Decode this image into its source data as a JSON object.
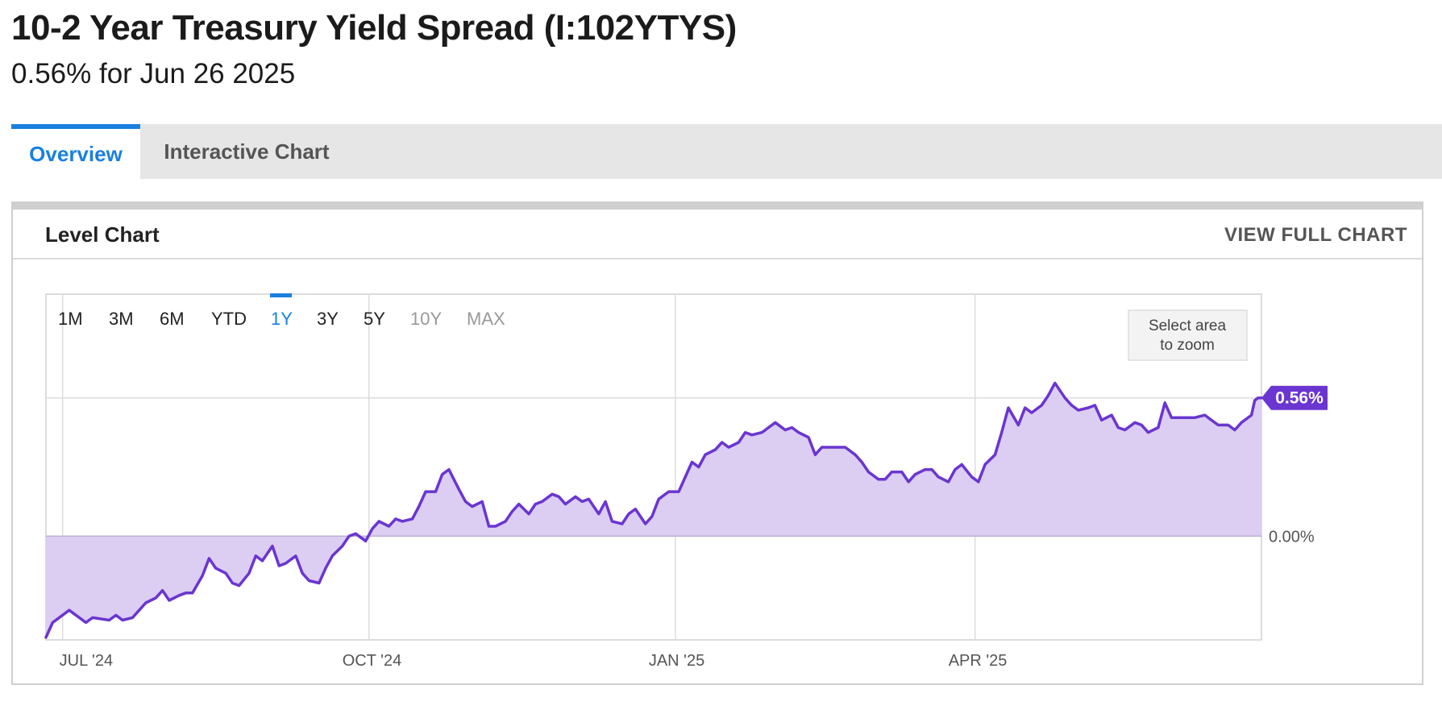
{
  "header": {
    "title": "10-2 Year Treasury Yield Spread (I:102YTYS)",
    "subtitle": "0.56% for Jun 26 2025"
  },
  "tabs": [
    {
      "label": "Overview",
      "active": true
    },
    {
      "label": "Interactive Chart",
      "active": false
    }
  ],
  "panel": {
    "title": "Level Chart",
    "link": "VIEW FULL CHART"
  },
  "range_buttons": [
    {
      "label": "1M",
      "state": "enabled"
    },
    {
      "label": "3M",
      "state": "enabled"
    },
    {
      "label": "6M",
      "state": "enabled"
    },
    {
      "label": "YTD",
      "state": "enabled"
    },
    {
      "label": "1Y",
      "state": "active"
    },
    {
      "label": "3Y",
      "state": "enabled"
    },
    {
      "label": "5Y",
      "state": "enabled"
    },
    {
      "label": "10Y",
      "state": "disabled"
    },
    {
      "label": "MAX",
      "state": "disabled"
    }
  ],
  "zoom_hint": [
    "Select area",
    "to zoom"
  ],
  "colors": {
    "series": "#6a35d0",
    "fill": "#dccdf3",
    "accent": "#1a80e0",
    "grid": "#dcdcdc",
    "disabled": "#999999"
  },
  "chart_data": {
    "type": "area",
    "title": "Level Chart",
    "xlim": [
      "2024-06-26",
      "2025-06-26"
    ],
    "ylim": [
      -0.42,
      0.98
    ],
    "x_ticks": [
      {
        "date": "2024-07-01",
        "label": "JUL '24"
      },
      {
        "date": "2024-10-01",
        "label": "OCT '24"
      },
      {
        "date": "2025-01-01",
        "label": "JAN '25"
      },
      {
        "date": "2025-04-01",
        "label": "APR '25"
      }
    ],
    "y_ticks": [
      {
        "value": 0,
        "label": "0.00%"
      }
    ],
    "last_value_label": "0.56%",
    "series": [
      {
        "values": [
          [
            "2024-06-26",
            -0.41
          ],
          [
            "2024-06-28",
            -0.35
          ],
          [
            "2024-07-03",
            -0.3
          ],
          [
            "2024-07-05",
            -0.32
          ],
          [
            "2024-07-08",
            -0.35
          ],
          [
            "2024-07-10",
            -0.33
          ],
          [
            "2024-07-15",
            -0.34
          ],
          [
            "2024-07-17",
            -0.32
          ],
          [
            "2024-07-19",
            -0.34
          ],
          [
            "2024-07-22",
            -0.33
          ],
          [
            "2024-07-24",
            -0.3
          ],
          [
            "2024-07-26",
            -0.27
          ],
          [
            "2024-07-29",
            -0.25
          ],
          [
            "2024-07-31",
            -0.22
          ],
          [
            "2024-08-02",
            -0.26
          ],
          [
            "2024-08-05",
            -0.24
          ],
          [
            "2024-08-07",
            -0.23
          ],
          [
            "2024-08-09",
            -0.23
          ],
          [
            "2024-08-12",
            -0.16
          ],
          [
            "2024-08-14",
            -0.09
          ],
          [
            "2024-08-16",
            -0.13
          ],
          [
            "2024-08-19",
            -0.15
          ],
          [
            "2024-08-21",
            -0.19
          ],
          [
            "2024-08-23",
            -0.2
          ],
          [
            "2024-08-26",
            -0.15
          ],
          [
            "2024-08-28",
            -0.08
          ],
          [
            "2024-08-30",
            -0.1
          ],
          [
            "2024-09-02",
            -0.04
          ],
          [
            "2024-09-04",
            -0.12
          ],
          [
            "2024-09-06",
            -0.11
          ],
          [
            "2024-09-09",
            -0.08
          ],
          [
            "2024-09-11",
            -0.15
          ],
          [
            "2024-09-13",
            -0.18
          ],
          [
            "2024-09-16",
            -0.19
          ],
          [
            "2024-09-18",
            -0.13
          ],
          [
            "2024-09-20",
            -0.08
          ],
          [
            "2024-09-23",
            -0.04
          ],
          [
            "2024-09-25",
            0.0
          ],
          [
            "2024-09-27",
            0.01
          ],
          [
            "2024-09-30",
            -0.02
          ],
          [
            "2024-10-02",
            0.03
          ],
          [
            "2024-10-04",
            0.06
          ],
          [
            "2024-10-07",
            0.04
          ],
          [
            "2024-10-09",
            0.07
          ],
          [
            "2024-10-11",
            0.06
          ],
          [
            "2024-10-14",
            0.07
          ],
          [
            "2024-10-16",
            0.12
          ],
          [
            "2024-10-18",
            0.18
          ],
          [
            "2024-10-21",
            0.18
          ],
          [
            "2024-10-23",
            0.25
          ],
          [
            "2024-10-25",
            0.27
          ],
          [
            "2024-10-28",
            0.19
          ],
          [
            "2024-10-30",
            0.14
          ],
          [
            "2024-11-01",
            0.12
          ],
          [
            "2024-11-04",
            0.14
          ],
          [
            "2024-11-06",
            0.04
          ],
          [
            "2024-11-08",
            0.04
          ],
          [
            "2024-11-11",
            0.06
          ],
          [
            "2024-11-13",
            0.1
          ],
          [
            "2024-11-15",
            0.13
          ],
          [
            "2024-11-18",
            0.09
          ],
          [
            "2024-11-20",
            0.13
          ],
          [
            "2024-11-22",
            0.14
          ],
          [
            "2024-11-25",
            0.17
          ],
          [
            "2024-11-27",
            0.16
          ],
          [
            "2024-11-29",
            0.13
          ],
          [
            "2024-12-02",
            0.16
          ],
          [
            "2024-12-04",
            0.14
          ],
          [
            "2024-12-06",
            0.15
          ],
          [
            "2024-12-09",
            0.09
          ],
          [
            "2024-12-11",
            0.14
          ],
          [
            "2024-12-13",
            0.06
          ],
          [
            "2024-12-16",
            0.05
          ],
          [
            "2024-12-18",
            0.09
          ],
          [
            "2024-12-20",
            0.11
          ],
          [
            "2024-12-23",
            0.05
          ],
          [
            "2024-12-25",
            0.08
          ],
          [
            "2024-12-27",
            0.15
          ],
          [
            "2024-12-30",
            0.18
          ],
          [
            "2025-01-02",
            0.18
          ],
          [
            "2025-01-06",
            0.3
          ],
          [
            "2025-01-08",
            0.28
          ],
          [
            "2025-01-10",
            0.33
          ],
          [
            "2025-01-13",
            0.35
          ],
          [
            "2025-01-15",
            0.38
          ],
          [
            "2025-01-17",
            0.36
          ],
          [
            "2025-01-20",
            0.38
          ],
          [
            "2025-01-22",
            0.42
          ],
          [
            "2025-01-24",
            0.41
          ],
          [
            "2025-01-27",
            0.42
          ],
          [
            "2025-01-29",
            0.44
          ],
          [
            "2025-01-31",
            0.46
          ],
          [
            "2025-02-03",
            0.43
          ],
          [
            "2025-02-05",
            0.44
          ],
          [
            "2025-02-07",
            0.42
          ],
          [
            "2025-02-10",
            0.4
          ],
          [
            "2025-02-12",
            0.33
          ],
          [
            "2025-02-14",
            0.36
          ],
          [
            "2025-02-17",
            0.36
          ],
          [
            "2025-02-19",
            0.36
          ],
          [
            "2025-02-21",
            0.36
          ],
          [
            "2025-02-24",
            0.33
          ],
          [
            "2025-02-26",
            0.3
          ],
          [
            "2025-02-28",
            0.26
          ],
          [
            "2025-03-03",
            0.23
          ],
          [
            "2025-03-05",
            0.23
          ],
          [
            "2025-03-07",
            0.26
          ],
          [
            "2025-03-10",
            0.26
          ],
          [
            "2025-03-12",
            0.22
          ],
          [
            "2025-03-14",
            0.25
          ],
          [
            "2025-03-17",
            0.27
          ],
          [
            "2025-03-19",
            0.27
          ],
          [
            "2025-03-21",
            0.24
          ],
          [
            "2025-03-24",
            0.22
          ],
          [
            "2025-03-26",
            0.27
          ],
          [
            "2025-03-28",
            0.29
          ],
          [
            "2025-03-31",
            0.24
          ],
          [
            "2025-04-02",
            0.22
          ],
          [
            "2025-04-04",
            0.29
          ],
          [
            "2025-04-07",
            0.33
          ],
          [
            "2025-04-09",
            0.42
          ],
          [
            "2025-04-11",
            0.52
          ],
          [
            "2025-04-14",
            0.45
          ],
          [
            "2025-04-16",
            0.52
          ],
          [
            "2025-04-18",
            0.5
          ],
          [
            "2025-04-21",
            0.53
          ],
          [
            "2025-04-23",
            0.57
          ],
          [
            "2025-04-25",
            0.62
          ],
          [
            "2025-04-28",
            0.56
          ],
          [
            "2025-04-30",
            0.53
          ],
          [
            "2025-05-02",
            0.51
          ],
          [
            "2025-05-05",
            0.52
          ],
          [
            "2025-05-07",
            0.53
          ],
          [
            "2025-05-09",
            0.47
          ],
          [
            "2025-05-12",
            0.49
          ],
          [
            "2025-05-14",
            0.44
          ],
          [
            "2025-05-16",
            0.43
          ],
          [
            "2025-05-19",
            0.46
          ],
          [
            "2025-05-21",
            0.45
          ],
          [
            "2025-05-23",
            0.42
          ],
          [
            "2025-05-26",
            0.44
          ],
          [
            "2025-05-28",
            0.54
          ],
          [
            "2025-05-30",
            0.48
          ],
          [
            "2025-06-02",
            0.48
          ],
          [
            "2025-06-04",
            0.48
          ],
          [
            "2025-06-06",
            0.48
          ],
          [
            "2025-06-09",
            0.49
          ],
          [
            "2025-06-11",
            0.47
          ],
          [
            "2025-06-13",
            0.45
          ],
          [
            "2025-06-16",
            0.45
          ],
          [
            "2025-06-18",
            0.43
          ],
          [
            "2025-06-20",
            0.46
          ],
          [
            "2025-06-23",
            0.49
          ],
          [
            "2025-06-24",
            0.55
          ],
          [
            "2025-06-25",
            0.56
          ],
          [
            "2025-06-26",
            0.56
          ]
        ]
      }
    ]
  }
}
